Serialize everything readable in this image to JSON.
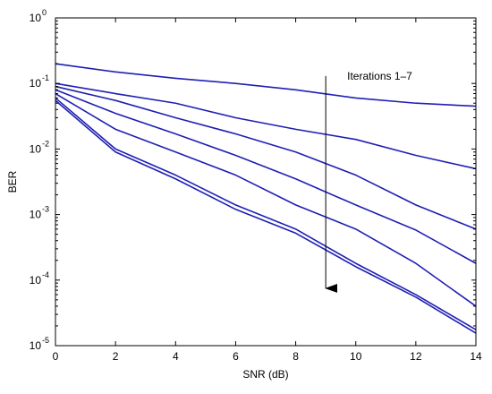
{
  "chart_data": {
    "type": "line",
    "xlabel": "SNR (dB)",
    "ylabel": "BER",
    "xlim": [
      0,
      14
    ],
    "ylim": [
      1e-05,
      1
    ],
    "yscale": "log",
    "xticks": [
      0,
      2,
      4,
      6,
      8,
      10,
      12,
      14
    ],
    "yticks": [
      {
        "base": "10",
        "exp": "0",
        "value": 1
      },
      {
        "base": "10",
        "exp": "-1",
        "value": 0.1
      },
      {
        "base": "10",
        "exp": "-2",
        "value": 0.01
      },
      {
        "base": "10",
        "exp": "-3",
        "value": 0.001
      },
      {
        "base": "10",
        "exp": "-4",
        "value": 0.0001
      },
      {
        "base": "10",
        "exp": "-5",
        "value": 1e-05
      }
    ],
    "grid": false,
    "line_color": "#1f1fb4",
    "x": [
      0,
      2,
      4,
      6,
      8,
      10,
      12,
      14
    ],
    "series": [
      {
        "values": [
          0.2,
          0.15,
          0.12,
          0.1,
          0.08,
          0.06,
          0.05,
          0.045
        ]
      },
      {
        "values": [
          0.1,
          0.07,
          0.05,
          0.03,
          0.02,
          0.014,
          0.008,
          0.005
        ]
      },
      {
        "values": [
          0.09,
          0.055,
          0.03,
          0.017,
          0.009,
          0.004,
          0.0014,
          0.0006
        ]
      },
      {
        "values": [
          0.08,
          0.035,
          0.017,
          0.008,
          0.0035,
          0.0014,
          0.00058,
          0.00018
        ]
      },
      {
        "values": [
          0.07,
          0.02,
          0.009,
          0.004,
          0.0014,
          0.0006,
          0.00018,
          4e-05
        ]
      },
      {
        "values": [
          0.06,
          0.01,
          0.004,
          0.0014,
          0.0006,
          0.00018,
          6e-05,
          1.75e-05
        ]
      },
      {
        "values": [
          0.055,
          0.009,
          0.0035,
          0.0012,
          0.00052,
          0.00016,
          5.5e-05,
          1.55e-05
        ]
      }
    ],
    "annotation": {
      "text": "Iterations 1–7",
      "arrow_x": 9.0,
      "arrow_from": 0.13,
      "arrow_to": 7.5e-05
    }
  }
}
